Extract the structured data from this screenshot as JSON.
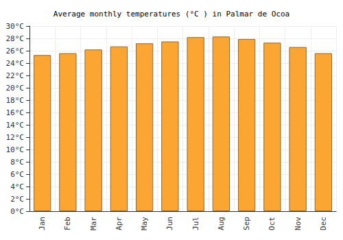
{
  "chart_data": {
    "type": "bar",
    "title": "Average monthly temperatures (°C ) in Palmar de Ocoa",
    "categories": [
      "Jan",
      "Feb",
      "Mar",
      "Apr",
      "May",
      "Jun",
      "Jul",
      "Aug",
      "Sep",
      "Oct",
      "Nov",
      "Dec"
    ],
    "values": [
      25.3,
      25.6,
      26.2,
      26.7,
      27.2,
      27.5,
      28.2,
      28.3,
      27.9,
      27.3,
      26.6,
      25.6
    ],
    "color": "#fba632",
    "ylim": [
      0,
      30
    ],
    "yticks": [
      {
        "value": 0,
        "label": "0°C"
      },
      {
        "value": 2,
        "label": "2°C"
      },
      {
        "value": 4,
        "label": "4°C"
      },
      {
        "value": 6,
        "label": "6°C"
      },
      {
        "value": 8,
        "label": "8°C"
      },
      {
        "value": 10,
        "label": "10°C"
      },
      {
        "value": 12,
        "label": "12°C"
      },
      {
        "value": 14,
        "label": "14°C"
      },
      {
        "value": 16,
        "label": "16°C"
      },
      {
        "value": 18,
        "label": "18°C"
      },
      {
        "value": 20,
        "label": "20°C"
      },
      {
        "value": 22,
        "label": "22°C"
      },
      {
        "value": 24,
        "label": "24°C"
      },
      {
        "value": 26,
        "label": "26°C"
      },
      {
        "value": 28,
        "label": "28°C"
      },
      {
        "value": 30,
        "label": "30°C"
      }
    ],
    "grid": true
  }
}
